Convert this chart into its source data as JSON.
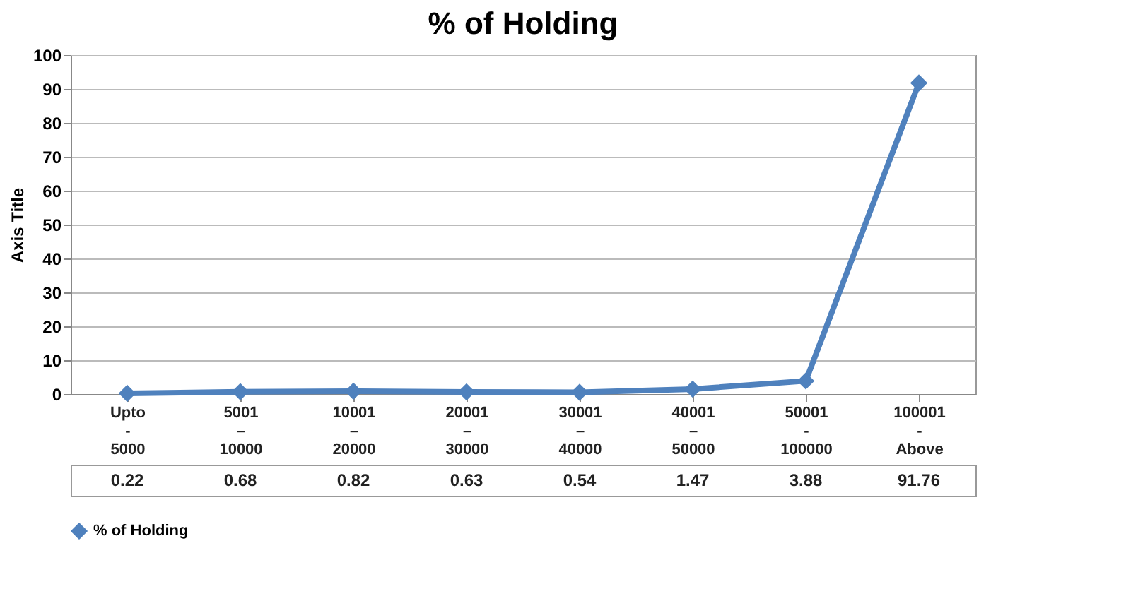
{
  "chart_data": {
    "type": "line",
    "title": "% of Holding",
    "ylabel": "Axis Title",
    "categories": [
      "Upto - 5000",
      "5001 – 10000",
      "10001 – 20000",
      "20001 – 30000",
      "30001 – 40000",
      "40001 – 50000",
      "50001 - 100000",
      "100001 - Above"
    ],
    "series": [
      {
        "name": "% of Holding",
        "color": "#4f81bd",
        "values": [
          0.22,
          0.68,
          0.82,
          0.63,
          0.54,
          1.47,
          3.88,
          91.76
        ]
      }
    ],
    "ylim": [
      0,
      100
    ],
    "yticks": [
      0,
      10,
      20,
      30,
      40,
      50,
      60,
      70,
      80,
      90,
      100
    ],
    "grid": "y",
    "marker": "diamond",
    "line_style": "solid",
    "data_labels": true,
    "legend": "bottom"
  }
}
